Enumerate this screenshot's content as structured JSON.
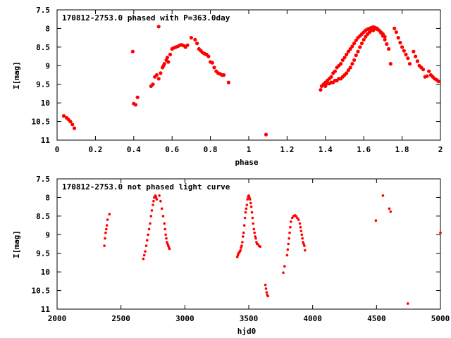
{
  "chart_data": [
    {
      "type": "scatter",
      "title": "170812-2753.0 phased with P=363.0day",
      "xlabel": "phase",
      "ylabel": "I[mag]",
      "xlim": [
        0,
        2
      ],
      "ylim": [
        11,
        7.5
      ],
      "y_inverted": true,
      "xticks": [
        0,
        0.2,
        0.4,
        0.6,
        0.8,
        1,
        1.2,
        1.4,
        1.6,
        1.8,
        2
      ],
      "xtick_labels": [
        "0",
        "0.2",
        "0.4",
        "0.6",
        "0.8",
        "1",
        "1.2",
        "1.4",
        "1.6",
        "1.8",
        "2"
      ],
      "yticks": [
        7.5,
        8,
        8.5,
        9,
        9.5,
        10,
        10.5,
        11
      ],
      "ytick_labels": [
        "7.5",
        "8",
        "8.5",
        "9",
        "9.5",
        "10",
        "10.5",
        "11"
      ],
      "marker_color": "#ff0000",
      "series": [
        {
          "name": "phased",
          "x": [
            0.035,
            0.05,
            0.06,
            0.07,
            0.08,
            0.09,
            0.395,
            0.4,
            0.41,
            0.42,
            0.53,
            0.49,
            0.5,
            0.51,
            0.52,
            0.53,
            0.54,
            0.55,
            0.555,
            0.56,
            0.57,
            0.575,
            0.58,
            0.59,
            0.6,
            0.61,
            0.62,
            0.63,
            0.64,
            0.65,
            0.66,
            0.67,
            0.68,
            0.7,
            0.72,
            0.73,
            0.74,
            0.75,
            0.76,
            0.77,
            0.78,
            0.79,
            0.8,
            0.81,
            0.82,
            0.83,
            0.84,
            0.85,
            0.86,
            0.87,
            0.895,
            1.09,
            1.375,
            1.38,
            1.39,
            1.4,
            1.41,
            1.42,
            1.43,
            1.44,
            1.45,
            1.46,
            1.47,
            1.48,
            1.49,
            1.5,
            1.51,
            1.52,
            1.53,
            1.54,
            1.55,
            1.56,
            1.57,
            1.58,
            1.59,
            1.6,
            1.61,
            1.62,
            1.63,
            1.64,
            1.65,
            1.66,
            1.67,
            1.68,
            1.69,
            1.7,
            1.71,
            1.72,
            1.73,
            1.74,
            1.76,
            1.77,
            1.78,
            1.79,
            1.8,
            1.81,
            1.82,
            1.83,
            1.84,
            1.86,
            1.87,
            1.88,
            1.89,
            1.9,
            1.91,
            1.92,
            1.93,
            1.94,
            1.95,
            1.96,
            1.97,
            1.98,
            1.99,
            1.4,
            1.41,
            1.42,
            1.43,
            1.44,
            1.45,
            1.46,
            1.47,
            1.48,
            1.49,
            1.5,
            1.51,
            1.52,
            1.53,
            1.54,
            1.55,
            1.56,
            1.57,
            1.58,
            1.59,
            1.6,
            1.61,
            1.62,
            1.63,
            1.64,
            1.65,
            1.66,
            1.67,
            1.68,
            1.69,
            1.7,
            1.71
          ],
          "y": [
            10.35,
            10.4,
            10.45,
            10.5,
            10.58,
            10.68,
            8.62,
            10.02,
            10.05,
            9.85,
            7.95,
            9.55,
            9.5,
            9.3,
            9.25,
            9.35,
            9.2,
            9.05,
            9.0,
            8.95,
            8.85,
            8.78,
            8.9,
            8.7,
            8.55,
            8.52,
            8.5,
            8.48,
            8.45,
            8.44,
            8.46,
            8.5,
            8.45,
            8.25,
            8.3,
            8.4,
            8.55,
            8.6,
            8.65,
            8.68,
            8.7,
            8.75,
            8.9,
            8.92,
            9.05,
            9.15,
            9.2,
            9.22,
            9.25,
            9.25,
            9.45,
            10.85,
            9.65,
            9.55,
            9.5,
            9.45,
            9.4,
            9.35,
            9.3,
            9.2,
            9.15,
            9.05,
            9.0,
            8.95,
            8.85,
            8.78,
            8.7,
            8.62,
            8.55,
            8.48,
            8.4,
            8.32,
            8.25,
            8.2,
            8.15,
            8.1,
            8.05,
            8.02,
            8.0,
            7.98,
            7.96,
            7.98,
            8.0,
            8.05,
            8.12,
            8.2,
            8.3,
            8.42,
            8.55,
            8.95,
            8.0,
            8.1,
            8.25,
            8.38,
            8.5,
            8.6,
            8.7,
            8.8,
            8.95,
            8.62,
            8.75,
            8.88,
            9.0,
            9.05,
            9.1,
            9.3,
            9.28,
            9.15,
            9.25,
            9.3,
            9.35,
            9.38,
            9.42,
            9.55,
            9.48,
            9.48,
            9.45,
            9.45,
            9.4,
            9.4,
            9.35,
            9.35,
            9.3,
            9.25,
            9.2,
            9.12,
            9.05,
            8.95,
            8.85,
            8.72,
            8.62,
            8.5,
            8.4,
            8.3,
            8.22,
            8.15,
            8.1,
            8.05,
            8.05,
            8.0,
            8.02,
            8.05,
            8.1,
            8.15,
            8.22
          ]
        }
      ]
    },
    {
      "type": "scatter",
      "title": "170812-2753.0 not phased light curve",
      "xlabel": "hjd0",
      "ylabel": "I[mag]",
      "xlim": [
        2000,
        5000
      ],
      "ylim": [
        11,
        7.5
      ],
      "y_inverted": true,
      "xticks": [
        2000,
        2500,
        3000,
        3500,
        4000,
        4500,
        5000
      ],
      "xtick_labels": [
        "2000",
        "2500",
        "3000",
        "3500",
        "4000",
        "4500",
        "5000"
      ],
      "yticks": [
        7.5,
        8,
        8.5,
        9,
        9.5,
        10,
        10.5,
        11
      ],
      "ytick_labels": [
        "7.5",
        "8",
        "8.5",
        "9",
        "9.5",
        "10",
        "10.5",
        "11"
      ],
      "marker_color": "#ff0000",
      "series": [
        {
          "name": "light curve",
          "x": [
            2370,
            2375,
            2380,
            2385,
            2390,
            2395,
            2410,
            2675,
            2682,
            2690,
            2698,
            2705,
            2712,
            2720,
            2728,
            2735,
            2742,
            2750,
            2755,
            2760,
            2765,
            2770,
            2775,
            2780,
            2800,
            2810,
            2820,
            2830,
            2840,
            2845,
            2850,
            2855,
            2860,
            2865,
            2870,
            2875,
            2880,
            3410,
            3415,
            3420,
            3425,
            3430,
            3435,
            3440,
            3445,
            3450,
            3455,
            3460,
            3465,
            3470,
            3475,
            3480,
            3485,
            3490,
            3495,
            3500,
            3505,
            3510,
            3515,
            3520,
            3525,
            3530,
            3535,
            3540,
            3545,
            3550,
            3555,
            3560,
            3565,
            3570,
            3580,
            3590,
            3630,
            3635,
            3640,
            3645,
            3650,
            3770,
            3780,
            3800,
            3805,
            3810,
            3815,
            3820,
            3825,
            3830,
            3840,
            3850,
            3860,
            3870,
            3880,
            3890,
            3900,
            3905,
            3910,
            3915,
            3920,
            3925,
            3930,
            3935,
            3940,
            4495,
            4550,
            4600,
            4610,
            4745,
            5000
          ],
          "y": [
            9.3,
            9.1,
            8.95,
            8.85,
            8.75,
            8.6,
            8.45,
            9.65,
            9.55,
            9.45,
            9.3,
            9.15,
            9.0,
            8.85,
            8.7,
            8.5,
            8.35,
            8.2,
            8.1,
            8.0,
            7.98,
            7.95,
            8.0,
            8.05,
            7.95,
            8.1,
            8.3,
            8.5,
            8.7,
            8.85,
            9.0,
            9.1,
            9.2,
            9.25,
            9.3,
            9.35,
            9.38,
            9.6,
            9.55,
            9.5,
            9.48,
            9.45,
            9.42,
            9.35,
            9.3,
            9.2,
            9.05,
            8.95,
            8.75,
            8.55,
            8.4,
            8.3,
            8.2,
            8.05,
            7.98,
            7.95,
            8.0,
            8.05,
            8.15,
            8.25,
            8.4,
            8.55,
            8.7,
            8.85,
            8.95,
            9.05,
            9.1,
            9.2,
            9.25,
            9.25,
            9.3,
            9.32,
            10.35,
            10.45,
            10.55,
            10.62,
            10.65,
            10.02,
            9.85,
            9.55,
            9.4,
            9.25,
            9.1,
            8.95,
            8.8,
            8.65,
            8.55,
            8.5,
            8.48,
            8.5,
            8.55,
            8.6,
            8.7,
            8.8,
            8.9,
            9.0,
            9.1,
            9.2,
            9.25,
            9.3,
            9.42,
            8.62,
            7.95,
            8.3,
            8.38,
            10.85,
            8.95
          ]
        }
      ]
    }
  ]
}
